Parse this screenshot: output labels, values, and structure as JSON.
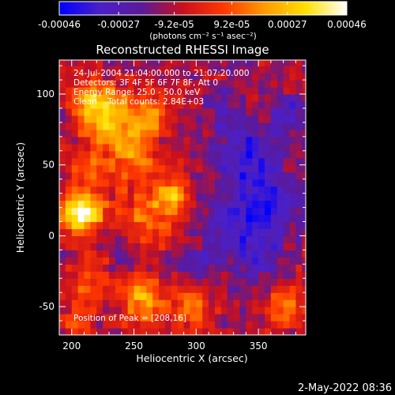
{
  "chart_data": {
    "type": "heatmap",
    "title": "Reconstructed RHESSI Image",
    "xlabel": "Heliocentric X (arcsec)",
    "ylabel": "Heliocentric Y (arcsec)",
    "xlim": [
      190,
      388
    ],
    "ylim": [
      -70,
      124
    ],
    "x_ticks": [
      200,
      250,
      300,
      350
    ],
    "y_ticks": [
      -50,
      0,
      50,
      100
    ],
    "x_tick_labels": [
      "200",
      "250",
      "300",
      "350"
    ],
    "y_tick_labels": [
      "-50",
      "0",
      "50",
      "100"
    ],
    "annotations": [
      "24-Jul-2004 21:04:00.000 to 21:07:20.000",
      "Detectors: 3F 4F 5F 6F 7F 8F, Att 0",
      "Energy Range: 25.0 - 50.0 keV",
      "Clean    Total counts: 2.84E+03"
    ],
    "peak_label": "Position of Peak = [208,16]",
    "peak_position": [
      208,
      16
    ],
    "colorbar": {
      "range": [
        -0.00046,
        0.00046
      ],
      "ticks": [
        -0.00046,
        -0.00027,
        -9.2e-05,
        9.2e-05,
        0.00027,
        0.00046
      ],
      "tick_labels": [
        "-0.00046",
        "-0.00027",
        "-9.2e-05",
        "9.2e-05",
        "0.00027",
        "0.00046"
      ],
      "unit_label": "(photons cm⁻² s⁻¹ asec⁻²)",
      "colormap": "blue-purple-red-orange-yellow-white",
      "colors": [
        "#0000ff",
        "#4b20c8",
        "#5a1a9a",
        "#c8101e",
        "#ff3800",
        "#ff9a00",
        "#ffe000",
        "#ffffff"
      ]
    },
    "blobs": [
      {
        "x": 205,
        "y": 16,
        "sigma": 9,
        "amp": 1.0
      },
      {
        "x": 215,
        "y": 20,
        "sigma": 12,
        "amp": 0.55
      },
      {
        "x": 228,
        "y": 85,
        "sigma": 14,
        "amp": 0.75
      },
      {
        "x": 212,
        "y": 98,
        "sigma": 10,
        "amp": 0.6
      },
      {
        "x": 262,
        "y": 88,
        "sigma": 11,
        "amp": 0.55
      },
      {
        "x": 248,
        "y": 60,
        "sigma": 16,
        "amp": 0.55
      },
      {
        "x": 280,
        "y": 28,
        "sigma": 10,
        "amp": 0.75
      },
      {
        "x": 258,
        "y": 10,
        "sigma": 14,
        "amp": 0.5
      },
      {
        "x": 216,
        "y": -30,
        "sigma": 12,
        "amp": 0.45
      },
      {
        "x": 258,
        "y": -45,
        "sigma": 12,
        "amp": 0.8
      },
      {
        "x": 296,
        "y": -50,
        "sigma": 11,
        "amp": 0.55
      },
      {
        "x": 372,
        "y": -50,
        "sigma": 11,
        "amp": 0.5
      },
      {
        "x": 212,
        "y": 50,
        "sigma": 10,
        "amp": 0.35
      },
      {
        "x": 205,
        "y": -62,
        "sigma": 10,
        "amp": 0.4
      },
      {
        "x": 340,
        "y": 55,
        "sigma": 16,
        "amp": -0.6
      },
      {
        "x": 362,
        "y": 20,
        "sigma": 16,
        "amp": -0.55
      },
      {
        "x": 330,
        "y": 10,
        "sigma": 14,
        "amp": -0.5
      },
      {
        "x": 350,
        "y": -15,
        "sigma": 12,
        "amp": -0.45
      },
      {
        "x": 375,
        "y": 85,
        "sigma": 10,
        "amp": -0.45
      },
      {
        "x": 322,
        "y": 90,
        "sigma": 10,
        "amp": -0.35
      },
      {
        "x": 300,
        "y": -20,
        "sigma": 12,
        "amp": -0.3
      },
      {
        "x": 240,
        "y": -12,
        "sigma": 10,
        "amp": -0.3
      }
    ],
    "noise_amplitude": 0.28
  },
  "footer": {
    "date": "2-May-2022 08:36"
  }
}
